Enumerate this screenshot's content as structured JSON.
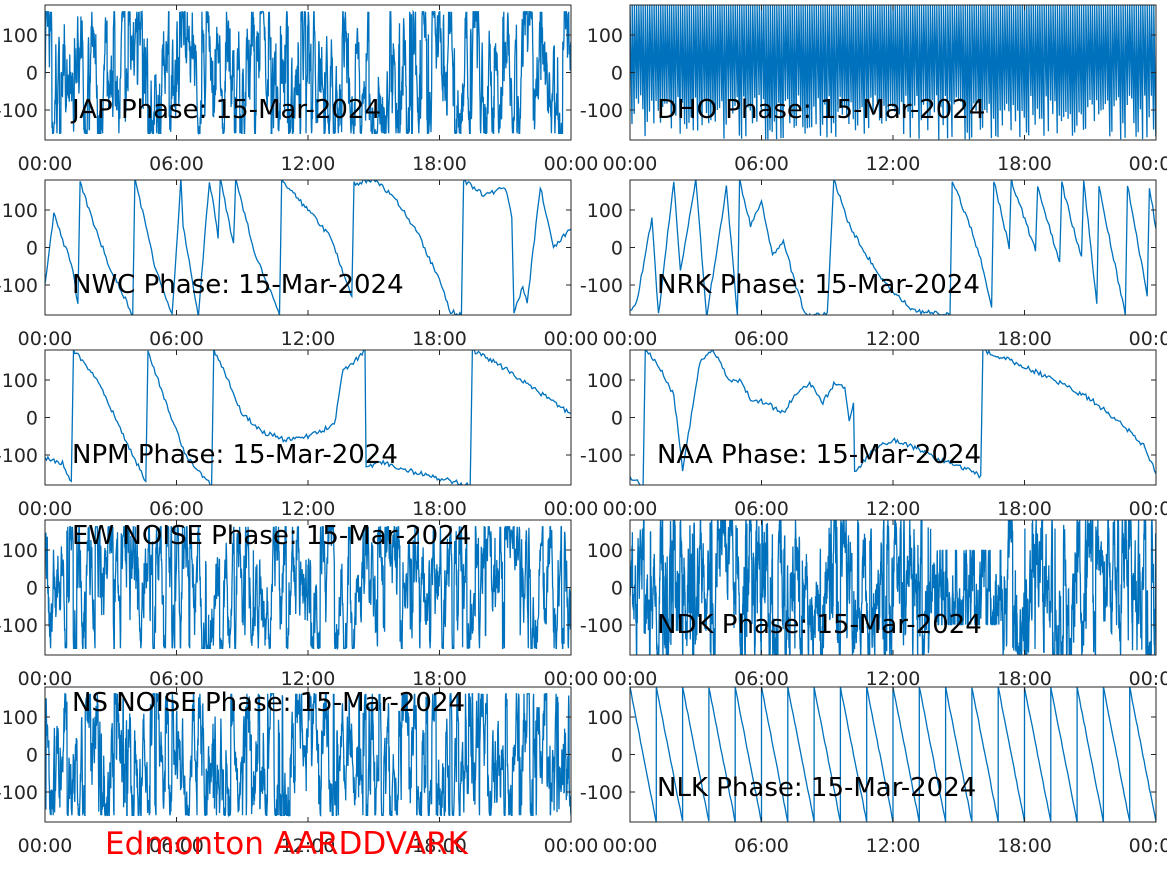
{
  "figure": {
    "footer_text": "Edmonton AARDDVARK",
    "footer_color": "#ff0000",
    "line_color": "#0072bd"
  },
  "chart_data": [
    {
      "type": "line",
      "title": "JAP Phase: 15-Mar-2024",
      "x_ticks": [
        "00:00",
        "06:00",
        "12:00",
        "18:00",
        "00:00"
      ],
      "y_ticks": [
        "-100",
        "0",
        "100"
      ],
      "ylim": [
        -180,
        180
      ],
      "pattern": "noise",
      "density": 0.9,
      "x": [
        "00:00",
        "24:00"
      ],
      "y": [
        0,
        0
      ]
    },
    {
      "type": "line",
      "title": "DHO Phase: 15-Mar-2024",
      "x_ticks": [
        "00:00",
        "06:00",
        "12:00",
        "18:00",
        "00:00"
      ],
      "y_ticks": [
        "-100",
        "0",
        "100"
      ],
      "ylim": [
        -180,
        180
      ],
      "pattern": "rapid-wrap",
      "wraps_per_day": 240,
      "x": [
        "00:00",
        "24:00"
      ],
      "y": [
        0,
        0
      ]
    },
    {
      "type": "line",
      "title": "NWC Phase: 15-Mar-2024",
      "x_ticks": [
        "00:00",
        "06:00",
        "12:00",
        "18:00",
        "00:00"
      ],
      "y_ticks": [
        "-100",
        "0",
        "100"
      ],
      "ylim": [
        -180,
        180
      ],
      "pattern": "points",
      "x": [
        0,
        0.4,
        0.8,
        1.2,
        1.5,
        1.6,
        2.0,
        2.5,
        3.0,
        3.6,
        4.0,
        4.1,
        4.6,
        5.0,
        5.8,
        6.2,
        6.3,
        7.0,
        7.5,
        7.9,
        8.0,
        8.6,
        8.7,
        9.6,
        10.7,
        10.8,
        12.0,
        13.0,
        14.0,
        14.1,
        15.0,
        16.0,
        17.0,
        18.0,
        18.5,
        19.0,
        19.1,
        20.0,
        21.0,
        21.3,
        21.4,
        21.8,
        22.0,
        22.6,
        23.2,
        24.0
      ],
      "y": [
        -100,
        90,
        20,
        -40,
        -150,
        180,
        100,
        20,
        -60,
        -130,
        -180,
        180,
        60,
        -50,
        -180,
        180,
        60,
        -180,
        180,
        30,
        180,
        10,
        180,
        -20,
        -180,
        180,
        100,
        30,
        -130,
        170,
        180,
        130,
        40,
        -90,
        -170,
        -180,
        180,
        140,
        160,
        80,
        -180,
        -100,
        -150,
        160,
        0,
        50
      ]
    },
    {
      "type": "line",
      "title": "NRK Phase: 15-Mar-2024",
      "x_ticks": [
        "00:00",
        "06:00",
        "12:00",
        "18:00",
        "00:00"
      ],
      "y_ticks": [
        "-100",
        "0",
        "100"
      ],
      "ylim": [
        -180,
        180
      ],
      "pattern": "points",
      "x": [
        0,
        0.3,
        1.0,
        1.3,
        2.0,
        2.3,
        3.0,
        3.5,
        4.4,
        4.9,
        5.0,
        5.5,
        6.0,
        6.5,
        7.0,
        7.5,
        8.0,
        9.0,
        9.3,
        10.0,
        11.0,
        12.0,
        13.0,
        14.6,
        14.7,
        15.5,
        16.0,
        16.5,
        16.6,
        17.3,
        17.4,
        18.5,
        18.6,
        19.6,
        19.7,
        20.6,
        20.7,
        21.3,
        21.4,
        22.6,
        22.7,
        23.6,
        23.7,
        24.0
      ],
      "y": [
        -170,
        -150,
        80,
        -180,
        180,
        -60,
        180,
        -180,
        160,
        -180,
        180,
        60,
        120,
        -20,
        20,
        -90,
        -180,
        -180,
        180,
        60,
        -40,
        -120,
        -170,
        -180,
        180,
        60,
        -30,
        -160,
        180,
        0,
        180,
        -10,
        160,
        -40,
        170,
        -30,
        180,
        -150,
        160,
        -180,
        170,
        -130,
        160,
        50
      ]
    },
    {
      "type": "line",
      "title": "NPM Phase: 15-Mar-2024",
      "x_ticks": [
        "00:00",
        "06:00",
        "12:00",
        "18:00",
        "00:00"
      ],
      "y_ticks": [
        "-100",
        "0",
        "100"
      ],
      "ylim": [
        -180,
        180
      ],
      "pattern": "points",
      "x": [
        0,
        0.8,
        1.2,
        1.3,
        2.5,
        3.5,
        4.6,
        4.7,
        5.5,
        6.5,
        7.6,
        7.7,
        8.2,
        9.0,
        10.0,
        11.0,
        12.0,
        12.8,
        13.2,
        13.6,
        14.0,
        14.6,
        14.65,
        15.5,
        16.5,
        17.5,
        18.5,
        19.4,
        19.5,
        21.0,
        22.5,
        24.0
      ],
      "y": [
        -110,
        -120,
        -170,
        180,
        90,
        -40,
        -170,
        180,
        40,
        -110,
        -180,
        180,
        120,
        10,
        -40,
        -60,
        -50,
        -30,
        -20,
        130,
        140,
        180,
        -130,
        -120,
        -140,
        -155,
        -170,
        -180,
        180,
        130,
        70,
        10
      ]
    },
    {
      "type": "line",
      "title": "NAA Phase: 15-Mar-2024",
      "x_ticks": [
        "00:00",
        "06:00",
        "12:00",
        "18:00",
        "00:00"
      ],
      "y_ticks": [
        "-100",
        "0",
        "100"
      ],
      "ylim": [
        -180,
        180
      ],
      "pattern": "points",
      "x": [
        0,
        0.6,
        0.7,
        1.2,
        2.0,
        2.4,
        3.2,
        3.8,
        4.5,
        5.0,
        5.5,
        6.2,
        7.0,
        7.5,
        8.2,
        8.8,
        9.3,
        9.8,
        10.0,
        10.2,
        10.25,
        11.0,
        12.0,
        13.0,
        14.0,
        15.0,
        16.0,
        16.1,
        17.0,
        19.0,
        21.0,
        22.5,
        23.5,
        24.0
      ],
      "y": [
        -160,
        -180,
        180,
        150,
        60,
        -140,
        150,
        180,
        100,
        100,
        50,
        40,
        10,
        60,
        90,
        40,
        90,
        80,
        -10,
        40,
        -150,
        -90,
        -60,
        -80,
        -110,
        -130,
        -155,
        180,
        160,
        110,
        50,
        -20,
        -80,
        -150
      ]
    },
    {
      "type": "line",
      "title": "EW NOISE Phase: 15-Mar-2024",
      "x_ticks": [
        "00:00",
        "06:00",
        "12:00",
        "18:00",
        "00:00"
      ],
      "y_ticks": [
        "-100",
        "0",
        "100"
      ],
      "ylim": [
        -180,
        180
      ],
      "pattern": "noise",
      "density": 0.85,
      "x": [
        "00:00",
        "24:00"
      ],
      "y": [
        0,
        0
      ]
    },
    {
      "type": "line",
      "title": "NDK Phase: 15-Mar-2024",
      "x_ticks": [
        "00:00",
        "06:00",
        "12:00",
        "18:00",
        "00:00"
      ],
      "y_ticks": [
        "-100",
        "0",
        "100"
      ],
      "ylim": [
        -180,
        180
      ],
      "pattern": "dense-noise",
      "density": 1.0,
      "x": [
        "00:00",
        "24:00"
      ],
      "y": [
        0,
        0
      ]
    },
    {
      "type": "line",
      "title": "NS NOISE Phase: 15-Mar-2024",
      "x_ticks": [
        "00:00",
        "06:00",
        "12:00",
        "18:00",
        "00:00"
      ],
      "y_ticks": [
        "-100",
        "0",
        "100"
      ],
      "ylim": [
        -180,
        180
      ],
      "pattern": "noise",
      "density": 0.85,
      "x": [
        "00:00",
        "24:00"
      ],
      "y": [
        0,
        0
      ]
    },
    {
      "type": "line",
      "title": "NLK Phase: 15-Mar-2024",
      "x_ticks": [
        "00:00",
        "06:00",
        "12:00",
        "18:00",
        "00:00"
      ],
      "y_ticks": [
        "-100",
        "0",
        "100"
      ],
      "ylim": [
        -180,
        180
      ],
      "pattern": "sawtooth",
      "wraps_per_day": 20,
      "x": [
        "00:00",
        "24:00"
      ],
      "y": [
        180,
        -180
      ]
    }
  ]
}
